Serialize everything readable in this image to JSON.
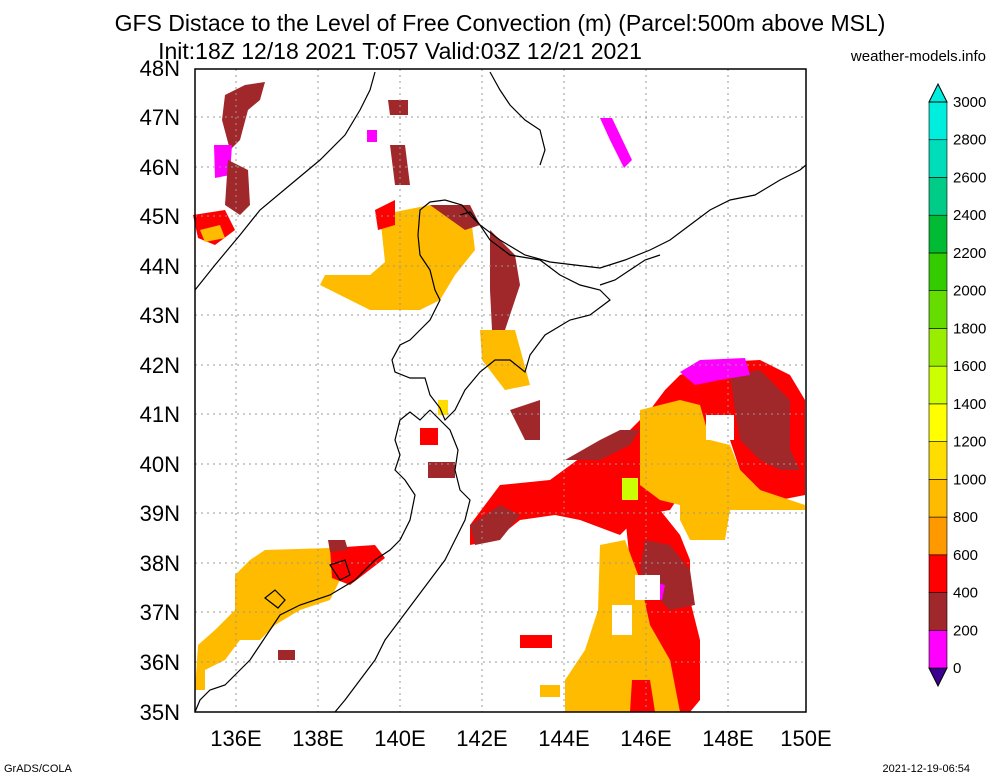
{
  "header": {
    "title_line1": "GFS Distace to the Level of Free Convection (m) (Parcel:500m above MSL)",
    "title_line2": "Init:18Z 12/18 2021 T:057 Valid:03Z 12/21 2021",
    "credit": "weather-models.info"
  },
  "footer": {
    "software": "GrADS/COLA",
    "timestamp": "2021-12-19-06:54"
  },
  "map": {
    "lon_labels": [
      "136E",
      "138E",
      "140E",
      "142E",
      "144E",
      "146E",
      "148E",
      "150E"
    ],
    "lat_labels": [
      "35N",
      "36N",
      "37N",
      "38N",
      "39N",
      "40N",
      "41N",
      "42N",
      "43N",
      "44N",
      "45N",
      "46N",
      "47N",
      "48N"
    ]
  },
  "colorbar": {
    "labels": [
      "0",
      "200",
      "400",
      "600",
      "800",
      "1000",
      "1200",
      "1400",
      "1600",
      "1800",
      "2000",
      "2200",
      "2400",
      "2600",
      "2800",
      "3000"
    ],
    "colors": [
      "#3c0090",
      "#ff00ff",
      "#a0282a",
      "#ff0000",
      "#ff9900",
      "#ffbb00",
      "#ffdd00",
      "#ffff00",
      "#ccff00",
      "#99ee00",
      "#66dd00",
      "#33cc00",
      "#00bb33",
      "#00cc88",
      "#00ddbb",
      "#00eedd"
    ]
  }
}
